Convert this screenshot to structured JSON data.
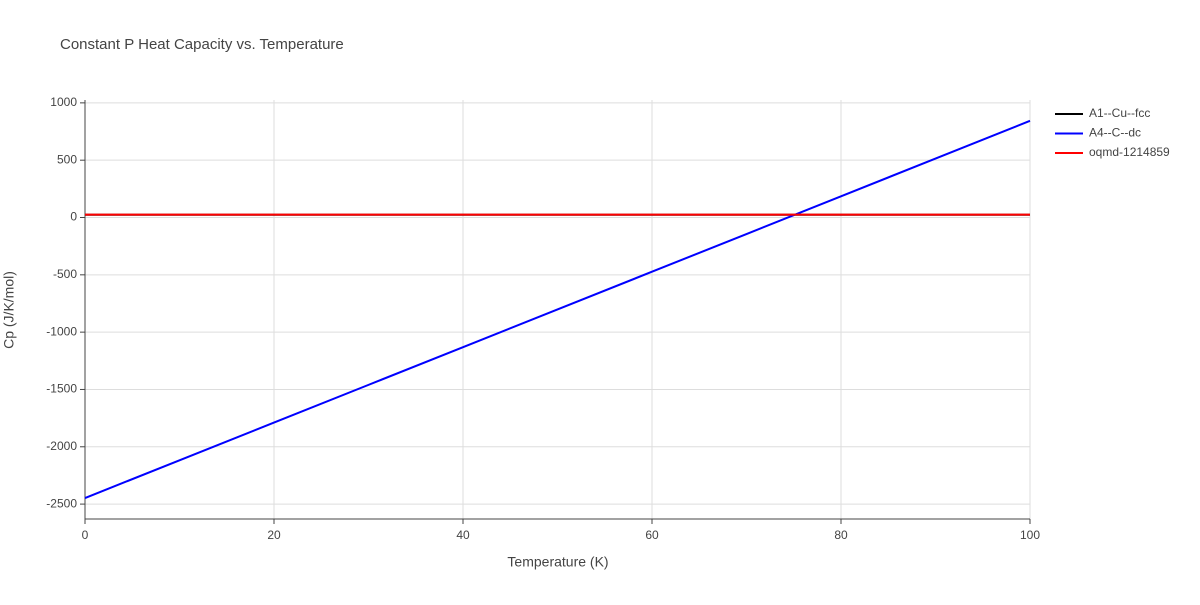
{
  "chart_data": {
    "type": "line",
    "title": "Constant P Heat Capacity vs. Temperature",
    "xlabel": "Temperature (K)",
    "ylabel": "Cp (J/K/mol)",
    "x": [
      0,
      10,
      20,
      30,
      40,
      50,
      60,
      70,
      80,
      90,
      100
    ],
    "series": [
      {
        "name": "A1--Cu--fcc",
        "color": "#000000",
        "values": [
          24,
          24,
          24,
          24,
          24,
          24,
          24,
          24,
          24,
          24,
          24
        ]
      },
      {
        "name": "A4--C--dc",
        "color": "#0000ff",
        "values": [
          -2447,
          -2118,
          -1789,
          -1460,
          -1131,
          -802,
          -473,
          -144,
          185,
          514,
          843
        ]
      },
      {
        "name": "oqmd-1214859",
        "color": "#ff0000",
        "values": [
          25,
          25,
          25,
          25,
          25,
          25,
          25,
          25,
          25,
          25,
          25
        ]
      }
    ],
    "xlim": [
      0,
      100
    ],
    "xticks": [
      0,
      20,
      40,
      60,
      80,
      100
    ],
    "ylim": [
      -2630,
      1025
    ],
    "yticks": [
      -2500,
      -2000,
      -1500,
      -1000,
      -500,
      0,
      500,
      1000
    ],
    "grid": true,
    "legend": "right"
  }
}
